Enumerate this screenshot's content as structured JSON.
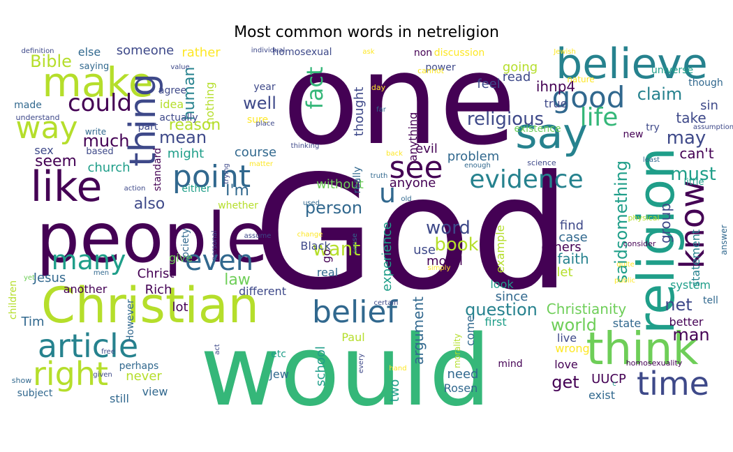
{
  "chart_data": {
    "type": "wordcloud",
    "title": "Most common words in netreligion",
    "colormap": [
      "#440154",
      "#482878",
      "#3e4989",
      "#31688e",
      "#26828e",
      "#1f9e89",
      "#35b779",
      "#6ece58",
      "#b5de2b",
      "#fde725"
    ],
    "words": [
      [
        "God",
        "#440154"
      ],
      [
        "one",
        "#440154"
      ],
      [
        "would",
        "#35b779"
      ],
      [
        "people",
        "#440154"
      ],
      [
        "religion",
        "#1f9e89"
      ],
      [
        "believe",
        "#26828e"
      ],
      [
        "Christian",
        "#b5de2b"
      ],
      [
        "think",
        "#6ece58"
      ],
      [
        "make",
        "#b5de2b"
      ],
      [
        "like",
        "#440154"
      ],
      [
        "say",
        "#26828e"
      ],
      [
        "thing",
        "#3e4989"
      ],
      [
        "point",
        "#31688e"
      ],
      [
        "article",
        "#26828e"
      ],
      [
        "time",
        "#3e4989"
      ],
      [
        "belief",
        "#31688e"
      ],
      [
        "good",
        "#31688e"
      ],
      [
        "many",
        "#1f9e89"
      ],
      [
        "know",
        "#440154"
      ],
      [
        "way",
        "#b5de2b"
      ],
      [
        "right",
        "#b5de2b"
      ],
      [
        "see",
        "#440154"
      ],
      [
        "evidence",
        "#26828e"
      ],
      [
        "even",
        "#31688e"
      ],
      [
        "could",
        "#440154"
      ],
      [
        "life",
        "#35b779"
      ],
      [
        "u",
        "#31688e"
      ],
      [
        "religious",
        "#3e4989"
      ],
      [
        "saidsomething",
        "#1f9e89"
      ],
      [
        "word",
        "#3e4989"
      ],
      [
        "question",
        "#26828e"
      ],
      [
        "fact",
        "#35b779"
      ],
      [
        "may",
        "#3e4989"
      ],
      [
        "must",
        "#1f9e89"
      ],
      [
        "want",
        "#b5de2b"
      ],
      [
        "person",
        "#31688e"
      ],
      [
        "book",
        "#b5de2b"
      ],
      [
        "Bible",
        "#b5de2b"
      ],
      [
        "much",
        "#440154"
      ],
      [
        "mean",
        "#3e4989"
      ],
      [
        "claim",
        "#26828e"
      ],
      [
        "well",
        "#3e4989"
      ],
      [
        "reason",
        "#b5de2b"
      ],
      [
        "world",
        "#6ece58"
      ],
      [
        "man",
        "#440154"
      ],
      [
        "law",
        "#6ece58"
      ],
      [
        "Christianity",
        "#6ece58"
      ],
      [
        "human",
        "#26828e"
      ],
      [
        "also",
        "#3e4989"
      ],
      [
        "I'm",
        "#31688e"
      ],
      [
        "seem",
        "#440154"
      ],
      [
        "church",
        "#1f9e89"
      ],
      [
        "net",
        "#3e4989"
      ],
      [
        "group",
        "#3e4989"
      ],
      [
        "get",
        "#440154"
      ],
      [
        "argument",
        "#31688e"
      ],
      [
        "UUCP",
        "#440154"
      ],
      [
        "case",
        "#31688e"
      ],
      [
        "find",
        "#3e4989"
      ],
      [
        "faith",
        "#26828e"
      ],
      [
        "experience",
        "#1f9e89"
      ],
      [
        "thought",
        "#3e4989"
      ],
      [
        "evil",
        "#440154"
      ],
      [
        "anyone",
        "#440154"
      ],
      [
        "true",
        "#3e4989"
      ],
      [
        "take",
        "#3e4989"
      ],
      [
        "sin",
        "#3e4989"
      ],
      [
        "can't",
        "#440154"
      ],
      [
        "statement",
        "#26828e"
      ],
      [
        "feel",
        "#3e4989"
      ],
      [
        "ihnp4",
        "#440154"
      ],
      [
        "read",
        "#3e4989"
      ],
      [
        "going",
        "#b5de2b"
      ],
      [
        "rather",
        "#fde725"
      ],
      [
        "someone",
        "#3e4989"
      ],
      [
        "else",
        "#31688e"
      ],
      [
        "sex",
        "#3e4989"
      ],
      [
        "might",
        "#1f9e89"
      ],
      [
        "course",
        "#31688e"
      ],
      [
        "without",
        "#6ece58"
      ],
      [
        "problem",
        "#31688e"
      ],
      [
        "Black",
        "#3e4989"
      ],
      [
        "moral",
        "#440154"
      ],
      [
        "use",
        "#3e4989"
      ],
      [
        "others",
        "#440154"
      ],
      [
        "let",
        "#b5de2b"
      ],
      [
        "Jesus",
        "#31688e"
      ],
      [
        "Christ",
        "#440154"
      ],
      [
        "Rich",
        "#440154"
      ],
      [
        "give",
        "#6ece58"
      ],
      [
        "look",
        "#1f9e89"
      ],
      [
        "since",
        "#31688e"
      ],
      [
        "different",
        "#3e4989"
      ],
      [
        "lot",
        "#440154"
      ],
      [
        "first",
        "#1f9e89"
      ],
      [
        "state",
        "#31688e"
      ],
      [
        "better",
        "#440154"
      ],
      [
        "live",
        "#3e4989"
      ],
      [
        "wrong",
        "#fde725"
      ],
      [
        "Paul",
        "#b5de2b"
      ],
      [
        "school",
        "#1f9e89"
      ],
      [
        "two",
        "#1f9e89"
      ],
      [
        "Tim",
        "#31688e"
      ],
      [
        "never",
        "#b5de2b"
      ],
      [
        "need",
        "#31688e"
      ],
      [
        "Rosen",
        "#31688e"
      ],
      [
        "exist",
        "#31688e"
      ],
      [
        "view",
        "#31688e"
      ],
      [
        "still",
        "#31688e"
      ],
      [
        "another",
        "#440154"
      ],
      [
        "love",
        "#440154"
      ],
      [
        "Jew",
        "#31688e"
      ],
      [
        "etc",
        "#1f9e89"
      ],
      [
        "mind",
        "#440154"
      ],
      [
        "perhaps",
        "#31688e"
      ],
      [
        "subject",
        "#31688e"
      ],
      [
        "show",
        "#31688e"
      ],
      [
        "part",
        "#3e4989"
      ],
      [
        "agree",
        "#3e4989"
      ],
      [
        "idea",
        "#b5de2b"
      ],
      [
        "made",
        "#31688e"
      ],
      [
        "actually",
        "#3e4989"
      ],
      [
        "saying",
        "#31688e"
      ],
      [
        "year",
        "#3e4989"
      ],
      [
        "sure",
        "#fde725"
      ],
      [
        "nothing",
        "#b5de2b"
      ],
      [
        "homosexual",
        "#3e4989"
      ],
      [
        "non",
        "#440154"
      ],
      [
        "discussion",
        "#fde725"
      ],
      [
        "power",
        "#3e4989"
      ],
      [
        "cannot",
        "#fde725"
      ],
      [
        "nature",
        "#fde725"
      ],
      [
        "day",
        "#fde725"
      ],
      [
        "universe",
        "#1f9e89"
      ],
      [
        "though",
        "#31688e"
      ],
      [
        "existence",
        "#6ece58"
      ],
      [
        "new",
        "#440154"
      ],
      [
        "little",
        "#1f9e89"
      ],
      [
        "children",
        "#b5de2b"
      ],
      [
        "However",
        "#31688e"
      ],
      [
        "standard",
        "#440154"
      ],
      [
        "either",
        "#1f9e89"
      ],
      [
        "whether",
        "#b5de2b"
      ],
      [
        "society",
        "#31688e"
      ],
      [
        "really",
        "#31688e"
      ],
      [
        "go",
        "#440154"
      ],
      [
        "real",
        "#31688e"
      ],
      [
        "based",
        "#3e4989"
      ],
      [
        "write",
        "#31688e"
      ],
      [
        "understand",
        "#3e4989"
      ],
      [
        "definition",
        "#3e4989"
      ],
      [
        "individual",
        "#3e4989"
      ],
      [
        "value",
        "#3e4989"
      ],
      [
        "ask",
        "#fde725"
      ],
      [
        "Jewish",
        "#fde725"
      ],
      [
        "place",
        "#3e4989"
      ],
      [
        "far",
        "#31688e"
      ],
      [
        "thinking",
        "#3e4989"
      ],
      [
        "matter",
        "#fde725"
      ],
      [
        "back",
        "#fde725"
      ],
      [
        "science",
        "#3e4989"
      ],
      [
        "enough",
        "#31688e"
      ],
      [
        "trying",
        "#3e4989"
      ],
      [
        "action",
        "#3e4989"
      ],
      [
        "used",
        "#31688e"
      ],
      [
        "truth",
        "#31688e"
      ],
      [
        "old",
        "#31688e"
      ],
      [
        "sense",
        "#31688e"
      ],
      [
        "change",
        "#fde725"
      ],
      [
        "assume",
        "#3e4989"
      ],
      [
        "personal",
        "#3e4989"
      ],
      [
        "simply",
        "#fde725"
      ],
      [
        "certain",
        "#3e4989"
      ],
      [
        "morality",
        "#b5de2b"
      ],
      [
        "every",
        "#3e4989"
      ],
      [
        "hand",
        "#fde725"
      ],
      [
        "act",
        "#3e4989"
      ],
      [
        "free",
        "#3e4989"
      ],
      [
        "given",
        "#3e4989"
      ],
      [
        "men",
        "#31688e"
      ],
      [
        "yet",
        "#6ece58"
      ],
      [
        "public",
        "#fde725"
      ],
      [
        "quite",
        "#fde725"
      ],
      [
        "consider",
        "#440154"
      ],
      [
        "physical",
        "#b5de2b"
      ],
      [
        "assumption",
        "#3e4989"
      ],
      [
        "try",
        "#3e4989"
      ],
      [
        "tell",
        "#31688e"
      ],
      [
        "answer",
        "#31688e"
      ],
      [
        "system",
        "#1f9e89"
      ],
      [
        "homosexuality",
        "#440154"
      ],
      [
        "c",
        "#1f9e89"
      ],
      [
        "least",
        "#31688e"
      ],
      [
        "come",
        "#31688e"
      ],
      [
        "example",
        "#b5de2b"
      ],
      [
        "anything",
        "#440154"
      ]
    ]
  }
}
